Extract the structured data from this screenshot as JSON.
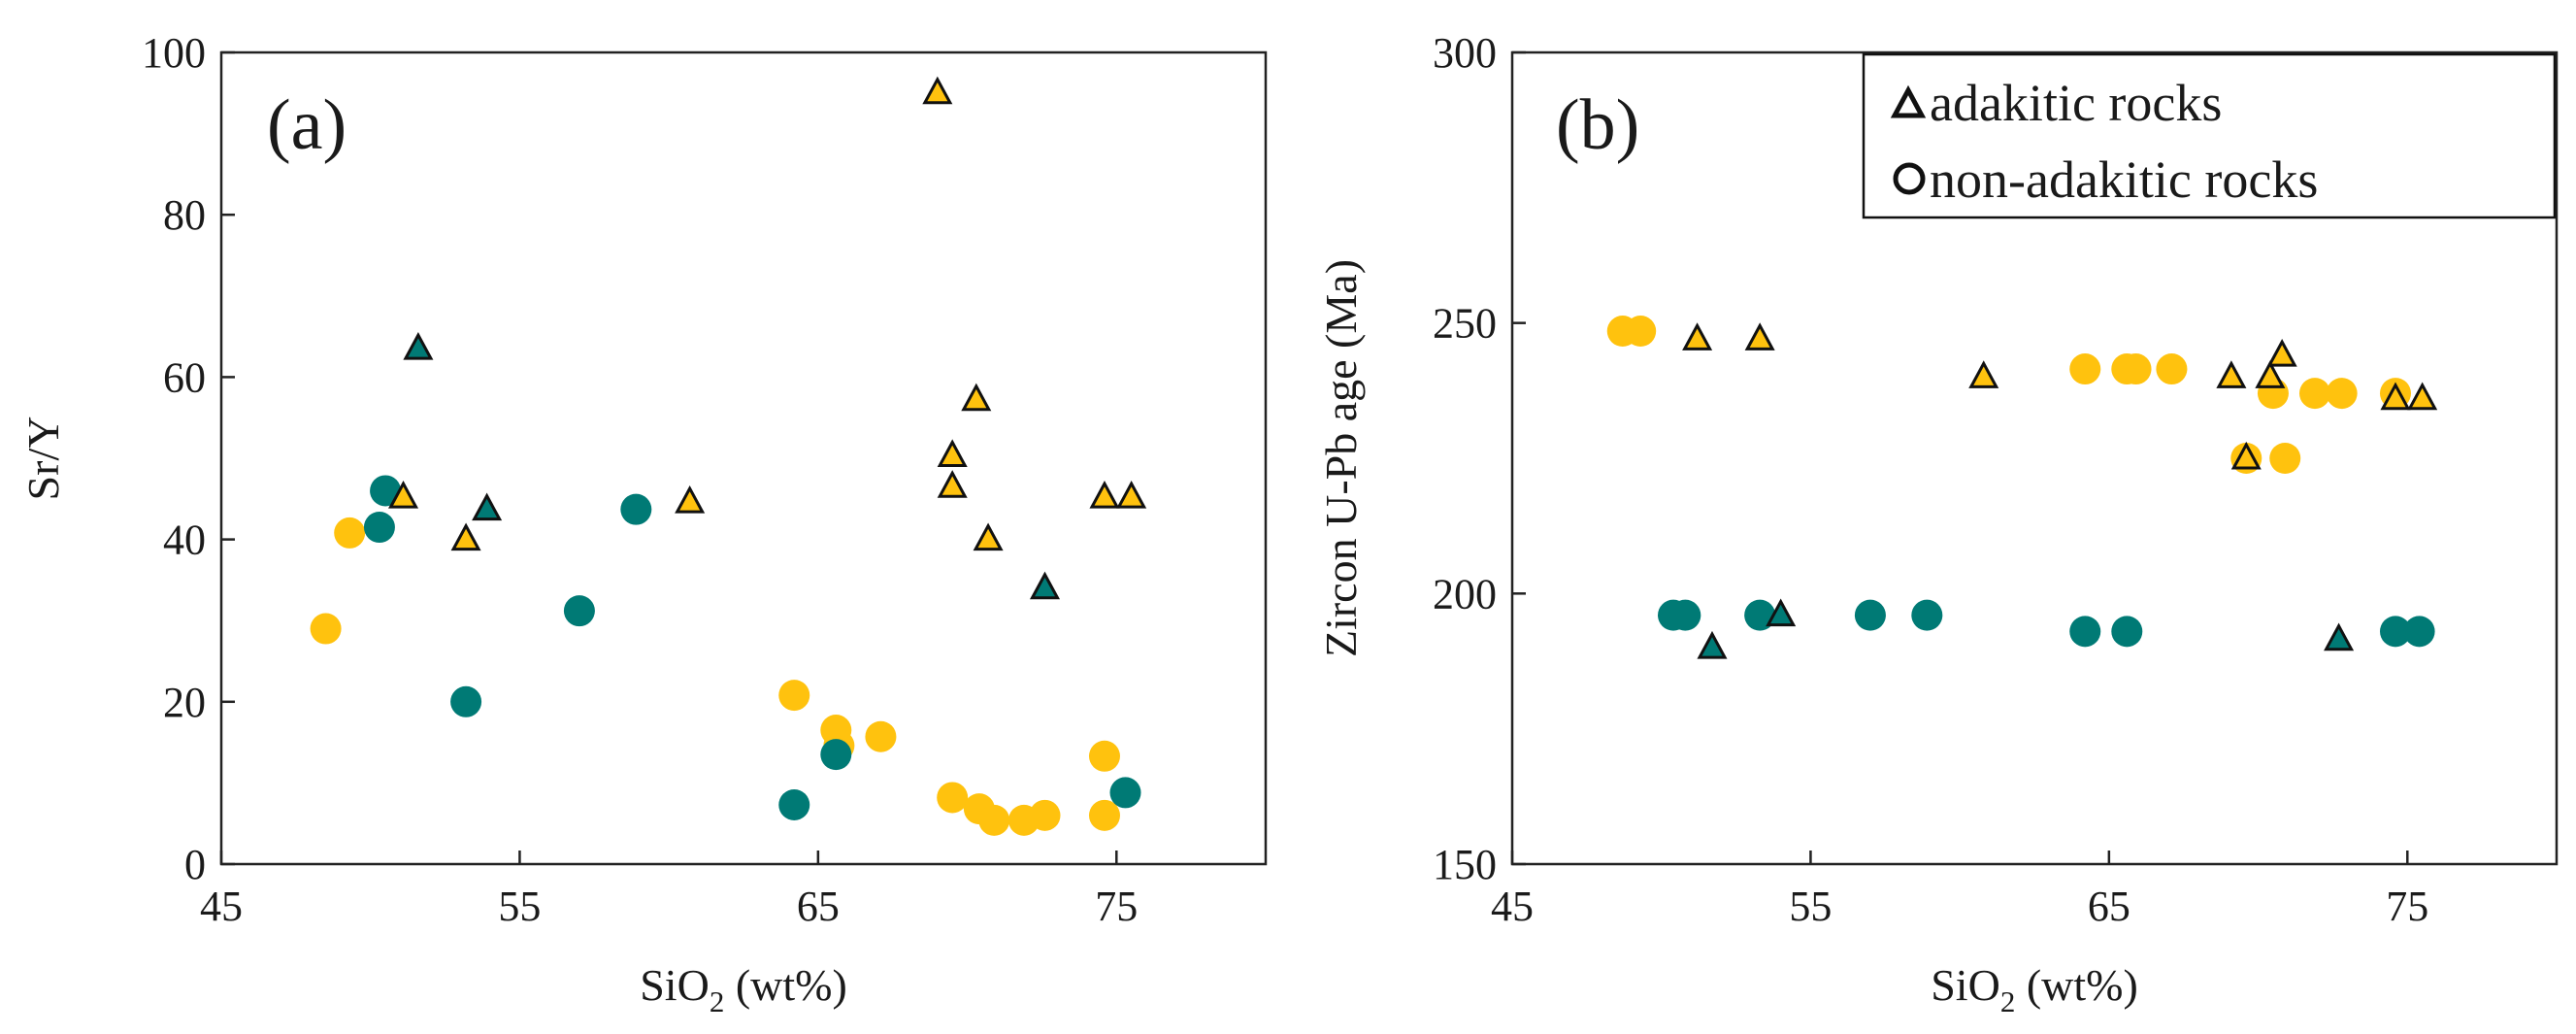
{
  "colors": {
    "yellow": "#FFC20E",
    "teal": "#007A75",
    "axis": "#222222",
    "edge": "#111111"
  },
  "chart_data": [
    {
      "type": "scatter",
      "panel_label": "(a)",
      "xlabel": {
        "main": "SiO",
        "sub": "2",
        "unit": " (wt%)"
      },
      "ylabel": "Sr/Y",
      "xlim": [
        45,
        80
      ],
      "ylim": [
        0,
        100
      ],
      "xticks": [
        45,
        55,
        65,
        75
      ],
      "yticks": [
        0,
        20,
        40,
        60,
        80,
        100
      ],
      "series": [
        {
          "name": "adakitic-yellow",
          "marker": "triangle",
          "color": "yellow",
          "points": [
            [
              51.1,
              45.2
            ],
            [
              53.2,
              40.0
            ],
            [
              60.7,
              44.6
            ],
            [
              69.0,
              95.0
            ],
            [
              69.5,
              50.3
            ],
            [
              69.5,
              46.5
            ],
            [
              70.3,
              57.2
            ],
            [
              70.7,
              40.0
            ],
            [
              74.6,
              45.2
            ],
            [
              75.5,
              45.2
            ]
          ]
        },
        {
          "name": "adakitic-teal",
          "marker": "triangle",
          "color": "teal",
          "points": [
            [
              51.6,
              63.5
            ],
            [
              53.9,
              43.7
            ],
            [
              72.6,
              34.0
            ]
          ]
        },
        {
          "name": "non-adakitic-yellow",
          "marker": "circle",
          "color": "yellow",
          "points": [
            [
              48.5,
              29.0
            ],
            [
              49.3,
              40.8
            ],
            [
              64.2,
              20.8
            ],
            [
              65.6,
              16.5
            ],
            [
              65.7,
              14.6
            ],
            [
              67.1,
              15.7
            ],
            [
              69.5,
              8.2
            ],
            [
              70.4,
              6.8
            ],
            [
              70.9,
              5.4
            ],
            [
              71.9,
              5.4
            ],
            [
              72.6,
              6.0
            ],
            [
              74.6,
              13.3
            ],
            [
              74.6,
              6.0
            ]
          ]
        },
        {
          "name": "non-adakitic-teal",
          "marker": "circle",
          "color": "teal",
          "points": [
            [
              50.3,
              41.5
            ],
            [
              50.5,
              46.0
            ],
            [
              53.2,
              20.0
            ],
            [
              57.0,
              31.2
            ],
            [
              58.9,
              43.7
            ],
            [
              64.2,
              7.3
            ],
            [
              65.6,
              13.5
            ],
            [
              75.3,
              8.8
            ]
          ]
        }
      ]
    },
    {
      "type": "scatter",
      "panel_label": "(b)",
      "xlabel": {
        "main": "SiO",
        "sub": "2",
        "unit": " (wt%)"
      },
      "ylabel": "Zircon U-Pb age (Ma)",
      "xlim": [
        45,
        80
      ],
      "ylim": [
        150,
        300
      ],
      "xticks": [
        45,
        55,
        65,
        75
      ],
      "yticks": [
        150,
        200,
        250,
        300
      ],
      "legend": {
        "position": "top-right",
        "entries": [
          {
            "marker": "triangle",
            "label": "adakitic rocks"
          },
          {
            "marker": "circle",
            "label": "non-adakitic rocks"
          }
        ]
      },
      "series": [
        {
          "name": "adakitic-yellow",
          "marker": "triangle",
          "color": "yellow",
          "points": [
            [
              51.2,
              247
            ],
            [
              53.3,
              247
            ],
            [
              60.8,
              240
            ],
            [
              69.1,
              240
            ],
            [
              70.4,
              240
            ],
            [
              70.8,
              244
            ],
            [
              74.6,
              236
            ],
            [
              75.5,
              236
            ],
            [
              69.6,
              225
            ]
          ]
        },
        {
          "name": "adakitic-teal",
          "marker": "triangle",
          "color": "teal",
          "points": [
            [
              51.7,
              190
            ],
            [
              54.0,
              196
            ],
            [
              72.7,
              191.5
            ]
          ]
        },
        {
          "name": "non-adakitic-yellow",
          "marker": "circle",
          "color": "yellow",
          "points": [
            [
              48.7,
              248.5
            ],
            [
              49.3,
              248.5
            ],
            [
              64.2,
              241.5
            ],
            [
              65.6,
              241.5
            ],
            [
              65.9,
              241.5
            ],
            [
              67.1,
              241.5
            ],
            [
              70.5,
              237
            ],
            [
              71.9,
              237
            ],
            [
              72.8,
              237
            ],
            [
              74.6,
              237
            ],
            [
              69.6,
              225
            ],
            [
              70.9,
              225
            ]
          ]
        },
        {
          "name": "non-adakitic-teal",
          "marker": "circle",
          "color": "teal",
          "points": [
            [
              50.4,
              196
            ],
            [
              50.8,
              196
            ],
            [
              53.3,
              196
            ],
            [
              57.0,
              196
            ],
            [
              58.9,
              196
            ],
            [
              64.2,
              193
            ],
            [
              65.6,
              193
            ],
            [
              74.6,
              193
            ],
            [
              75.4,
              193
            ]
          ]
        }
      ]
    }
  ]
}
